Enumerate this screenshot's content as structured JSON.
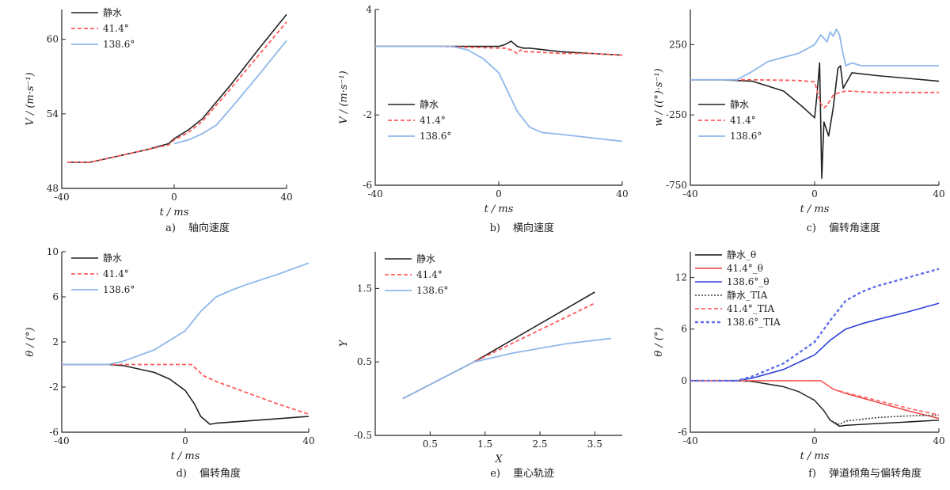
{
  "styles": {
    "s0": {
      "color": "#222222",
      "dash": "",
      "width": 1.6
    },
    "s1": {
      "color": "#ff5c5c",
      "dash": "5,3",
      "width": 1.8
    },
    "s2": {
      "color": "#8fb8ea",
      "dash": "",
      "width": 1.8
    },
    "f0": {
      "color": "#111111",
      "dash": "",
      "width": 1.4
    },
    "f1": {
      "color": "#e83a3a",
      "dash": "",
      "width": 1.4
    },
    "f2": {
      "color": "#3040d8",
      "dash": "",
      "width": 1.6
    },
    "f3": {
      "color": "#444444",
      "dash": "2,2",
      "width": 1.6
    },
    "f4": {
      "color": "#ff6a6a",
      "dash": "5,3",
      "width": 1.8
    },
    "f5": {
      "color": "#6070e8",
      "dash": "4,3",
      "width": 2.4
    }
  },
  "chart_data": [
    {
      "id": "a",
      "type": "line",
      "caption_label": "a)",
      "caption": "轴向速度",
      "xlabel": "t / ms",
      "ylabel": "V / (m·s⁻¹)",
      "xlim": [
        -40,
        40
      ],
      "ylim": [
        48,
        62.4
      ],
      "xticks": [
        {
          "v": -40,
          "l": "-40"
        },
        {
          "v": 0,
          "l": "0"
        },
        {
          "v": 40,
          "l": "40"
        }
      ],
      "yticks": [
        {
          "v": 48,
          "l": "48"
        },
        {
          "v": 54,
          "l": "54"
        },
        {
          "v": 60,
          "l": "60"
        }
      ],
      "legend": {
        "position": "top-left"
      },
      "series": [
        {
          "name": "静水",
          "style": "s0",
          "x": [
            -38,
            -30,
            -20,
            -10,
            -2,
            0,
            5,
            10,
            20,
            30,
            40
          ],
          "y": [
            50.1,
            50.1,
            50.6,
            51.1,
            51.6,
            52.0,
            52.7,
            53.6,
            56.3,
            59.2,
            62.0
          ]
        },
        {
          "name": "41.4°",
          "style": "s1",
          "x": [
            -38,
            -30,
            -20,
            -10,
            -2,
            0,
            5,
            10,
            20,
            30,
            40
          ],
          "y": [
            50.1,
            50.1,
            50.6,
            51.1,
            51.5,
            51.9,
            52.5,
            53.4,
            56.0,
            58.7,
            61.4
          ]
        },
        {
          "name": "138.6°",
          "style": "s2",
          "x": [
            0,
            5,
            10,
            15,
            20,
            30,
            40
          ],
          "y": [
            51.6,
            51.9,
            52.4,
            53.1,
            54.4,
            57.1,
            59.9
          ]
        }
      ]
    },
    {
      "id": "b",
      "type": "line",
      "caption_label": "b)",
      "caption": "横向速度",
      "xlabel": "t / ms",
      "ylabel": "V / (m·s⁻¹)",
      "xlim": [
        -40,
        40
      ],
      "ylim": [
        -6,
        4
      ],
      "xticks": [
        {
          "v": -40,
          "l": "-40"
        },
        {
          "v": 0,
          "l": "0"
        },
        {
          "v": 40,
          "l": "40"
        }
      ],
      "yticks": [
        {
          "v": -6,
          "l": "-6"
        },
        {
          "v": -2,
          "l": "-2"
        },
        {
          "v": 4,
          "l": "4"
        }
      ],
      "legend": {
        "position": "middle-left"
      },
      "series": [
        {
          "name": "静水",
          "style": "s0",
          "x": [
            -40,
            -20,
            0,
            2,
            4,
            6,
            8,
            10,
            15,
            20,
            30,
            40
          ],
          "y": [
            1.9,
            1.9,
            1.9,
            2.0,
            2.2,
            1.9,
            1.8,
            1.8,
            1.7,
            1.6,
            1.5,
            1.4
          ]
        },
        {
          "name": "41.4°",
          "style": "s1",
          "x": [
            -40,
            -20,
            0,
            2,
            4,
            6,
            7,
            8,
            10,
            20,
            30,
            40
          ],
          "y": [
            1.9,
            1.9,
            1.8,
            1.8,
            1.7,
            1.5,
            1.7,
            1.6,
            1.6,
            1.5,
            1.5,
            1.4
          ]
        },
        {
          "name": "138.6°",
          "style": "s2",
          "x": [
            -40,
            -15,
            -10,
            -5,
            0,
            3,
            6,
            10,
            14,
            20,
            30,
            40
          ],
          "y": [
            1.9,
            1.9,
            1.7,
            1.2,
            0.4,
            -0.7,
            -1.8,
            -2.7,
            -3.0,
            -3.1,
            -3.3,
            -3.5
          ]
        }
      ]
    },
    {
      "id": "c",
      "type": "line",
      "caption_label": "c)",
      "caption": "偏转角速度",
      "xlabel": "t / ms",
      "ylabel": "w / ((°)·s⁻¹)",
      "xlim": [
        -40,
        40
      ],
      "ylim": [
        -750,
        500
      ],
      "xticks": [
        {
          "v": -40,
          "l": "-40"
        },
        {
          "v": 0,
          "l": "0"
        },
        {
          "v": 40,
          "l": "40"
        }
      ],
      "yticks": [
        {
          "v": -750,
          "l": "-750"
        },
        {
          "v": -250,
          "l": "-250"
        },
        {
          "v": 250,
          "l": "250"
        }
      ],
      "legend": {
        "position": "middle-left"
      },
      "series": [
        {
          "name": "静水",
          "style": "s0",
          "x": [
            -40,
            -30,
            -20,
            -10,
            -4,
            0,
            0.8,
            1.6,
            2.3,
            3.0,
            4.5,
            6.0,
            7.5,
            8.3,
            9.2,
            12,
            20,
            30,
            40
          ],
          "y": [
            0,
            0,
            -10,
            -80,
            -190,
            -270,
            -100,
            120,
            -700,
            -300,
            -400,
            -200,
            80,
            100,
            -60,
            50,
            30,
            10,
            -10
          ]
        },
        {
          "name": "41.4°",
          "style": "s1",
          "x": [
            -40,
            -20,
            -10,
            -5,
            0,
            2,
            3,
            4,
            6,
            8,
            10,
            15,
            20,
            40
          ],
          "y": [
            0,
            0,
            -3,
            -5,
            -15,
            -170,
            -200,
            -180,
            -110,
            -90,
            -80,
            -85,
            -90,
            -90
          ]
        },
        {
          "name": "138.6°",
          "style": "s2",
          "x": [
            -40,
            -25,
            -20,
            -15,
            -10,
            -5,
            0,
            2,
            4,
            5,
            6,
            7,
            8,
            9,
            10,
            12,
            15,
            20,
            40
          ],
          "y": [
            0,
            0,
            60,
            130,
            160,
            190,
            250,
            320,
            270,
            340,
            310,
            360,
            320,
            200,
            100,
            120,
            100,
            100,
            100
          ]
        }
      ]
    },
    {
      "id": "d",
      "type": "line",
      "caption_label": "d)",
      "caption": "偏转角度",
      "xlabel": "t / ms",
      "ylabel": "θ / (°)",
      "xlim": [
        -40,
        40
      ],
      "ylim": [
        -6,
        10
      ],
      "xticks": [
        {
          "v": -40,
          "l": "-40"
        },
        {
          "v": 0,
          "l": "0"
        },
        {
          "v": 40,
          "l": "40"
        }
      ],
      "yticks": [
        {
          "v": -6,
          "l": "-6"
        },
        {
          "v": -2,
          "l": "-2"
        },
        {
          "v": 2,
          "l": "2"
        },
        {
          "v": 6,
          "l": "6"
        },
        {
          "v": 10,
          "l": "10"
        }
      ],
      "legend": {
        "position": "top-left"
      },
      "series": [
        {
          "name": "静水",
          "style": "s0",
          "x": [
            -40,
            -25,
            -20,
            -10,
            -5,
            0,
            3,
            5,
            8,
            10,
            20,
            30,
            40
          ],
          "y": [
            0,
            0,
            -0.1,
            -0.7,
            -1.3,
            -2.3,
            -3.5,
            -4.6,
            -5.3,
            -5.2,
            -5.0,
            -4.8,
            -4.6
          ]
        },
        {
          "name": "41.4°",
          "style": "s1",
          "x": [
            -40,
            -20,
            0,
            2,
            4,
            6,
            10,
            20,
            30,
            40
          ],
          "y": [
            0,
            0,
            0,
            0,
            -0.5,
            -1.0,
            -1.5,
            -2.5,
            -3.5,
            -4.4
          ]
        },
        {
          "name": "138.6°",
          "style": "s2",
          "x": [
            -40,
            -25,
            -20,
            -10,
            0,
            5,
            10,
            15,
            20,
            30,
            40
          ],
          "y": [
            0,
            0,
            0.3,
            1.3,
            3.0,
            4.7,
            6.0,
            6.6,
            7.1,
            8.0,
            9.0
          ]
        }
      ]
    },
    {
      "id": "e",
      "type": "line",
      "caption_label": "e)",
      "caption": "重心轨迹",
      "xlabel": "X",
      "ylabel": "Y",
      "xlim": [
        -0.5,
        4.0
      ],
      "ylim": [
        -0.5,
        2.0
      ],
      "xticks": [
        {
          "v": 0.5,
          "l": "0.5"
        },
        {
          "v": 1.5,
          "l": "1.5"
        },
        {
          "v": 2.5,
          "l": "2.5"
        },
        {
          "v": 3.5,
          "l": "3.5"
        }
      ],
      "yticks": [
        {
          "v": -0.5,
          "l": "-0.5"
        },
        {
          "v": 0.5,
          "l": "0.5"
        },
        {
          "v": 1.5,
          "l": "1.5"
        }
      ],
      "legend": {
        "position": "top-left"
      },
      "series": [
        {
          "name": "静水",
          "style": "s0",
          "x": [
            0,
            1.3,
            3.5
          ],
          "y": [
            0,
            0.5,
            1.45
          ]
        },
        {
          "name": "41.4°",
          "style": "s1",
          "x": [
            0,
            1.3,
            3.5
          ],
          "y": [
            0,
            0.5,
            1.3
          ]
        },
        {
          "name": "138.6°",
          "style": "s2",
          "x": [
            0,
            1.3,
            2.0,
            3.0,
            3.8
          ],
          "y": [
            0,
            0.5,
            0.62,
            0.75,
            0.82
          ]
        }
      ]
    },
    {
      "id": "f",
      "type": "line",
      "caption_label": "f)",
      "caption": "弹道倾角与偏转角度",
      "xlabel": "t / ms",
      "ylabel": "θ / (°)",
      "xlim": [
        -40,
        40
      ],
      "ylim": [
        -6,
        15
      ],
      "xticks": [
        {
          "v": -40,
          "l": "-40"
        },
        {
          "v": 0,
          "l": "0"
        },
        {
          "v": 40,
          "l": "40"
        }
      ],
      "yticks": [
        {
          "v": -6,
          "l": "-6"
        },
        {
          "v": 0,
          "l": "0"
        },
        {
          "v": 6,
          "l": "6"
        },
        {
          "v": 12,
          "l": "12"
        }
      ],
      "legend": {
        "position": "top-left"
      },
      "series": [
        {
          "name": "静水_θ",
          "style": "f0",
          "x": [
            -40,
            -25,
            -20,
            -10,
            -5,
            0,
            3,
            5,
            8,
            10,
            20,
            30,
            40
          ],
          "y": [
            0,
            0,
            -0.1,
            -0.7,
            -1.3,
            -2.3,
            -3.5,
            -4.6,
            -5.3,
            -5.2,
            -5.0,
            -4.8,
            -4.6
          ]
        },
        {
          "name": "41.4°_θ",
          "style": "f1",
          "x": [
            -40,
            -20,
            0,
            2,
            4,
            6,
            10,
            20,
            30,
            40
          ],
          "y": [
            0,
            0,
            0,
            0,
            -0.5,
            -1.0,
            -1.5,
            -2.5,
            -3.5,
            -4.4
          ]
        },
        {
          "name": "138.6°_θ",
          "style": "f2",
          "x": [
            -40,
            -25,
            -20,
            -10,
            0,
            5,
            10,
            15,
            20,
            30,
            40
          ],
          "y": [
            0,
            0,
            0.3,
            1.3,
            3.0,
            4.7,
            6.0,
            6.6,
            7.1,
            8.0,
            9.0
          ]
        },
        {
          "name": "静水_TIA",
          "style": "f3",
          "x": [
            -40,
            -25,
            -20,
            -10,
            -5,
            0,
            3,
            5,
            8,
            10,
            20,
            30,
            40
          ],
          "y": [
            0,
            0,
            -0.1,
            -0.7,
            -1.3,
            -2.3,
            -3.5,
            -4.6,
            -5.1,
            -4.7,
            -4.3,
            -4.1,
            -4.0
          ]
        },
        {
          "name": "41.4°_TIA",
          "style": "f4",
          "x": [
            -40,
            -20,
            0,
            2,
            4,
            6,
            10,
            20,
            30,
            40
          ],
          "y": [
            0,
            0,
            0,
            0,
            -0.5,
            -1.0,
            -1.4,
            -2.3,
            -3.2,
            -4.0
          ]
        },
        {
          "name": "138.6°_TIA",
          "style": "f5",
          "x": [
            -40,
            -25,
            -20,
            -10,
            0,
            5,
            10,
            15,
            20,
            30,
            40
          ],
          "y": [
            0,
            0,
            0.5,
            2.0,
            4.5,
            7.0,
            9.3,
            10.3,
            11.0,
            12.0,
            13.0
          ]
        }
      ]
    }
  ]
}
